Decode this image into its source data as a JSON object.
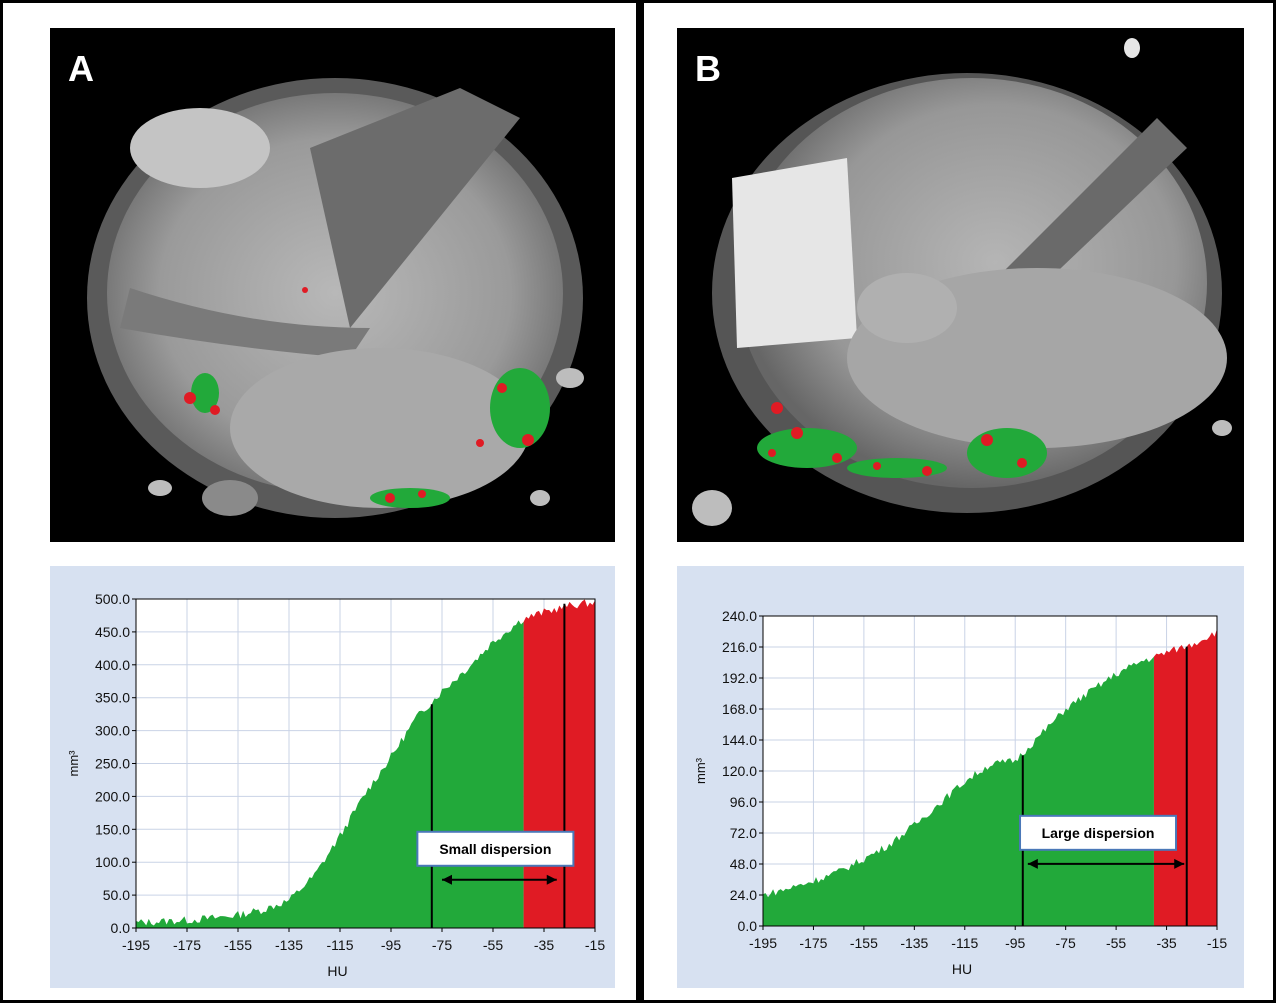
{
  "panels": [
    {
      "label": "A"
    },
    {
      "label": "B"
    }
  ],
  "colors": {
    "green": "#22a93a",
    "red": "#e01b24",
    "chart_bg": "#d7e1f1",
    "plot_bg": "#ffffff"
  },
  "chart_data": [
    {
      "type": "area",
      "panel": "A",
      "xlabel": "HU",
      "ylabel": "mm³",
      "xlim": [
        -195,
        -15
      ],
      "ylim": [
        0,
        500
      ],
      "xticks": [
        "-195",
        "-175",
        "-155",
        "-135",
        "-115",
        "-95",
        "-75",
        "-55",
        "-35",
        "-15"
      ],
      "yticks": [
        "0.0",
        "50.0",
        "100.0",
        "150.0",
        "200.0",
        "250.0",
        "300.0",
        "350.0",
        "400.0",
        "450.0",
        "500.0"
      ],
      "x": [
        -195,
        -185,
        -175,
        -165,
        -155,
        -145,
        -135,
        -125,
        -115,
        -105,
        -95,
        -85,
        -75,
        -65,
        -55,
        -45,
        -43,
        -35,
        -25,
        -15
      ],
      "y": [
        8,
        10,
        12,
        15,
        20,
        28,
        42,
        80,
        140,
        205,
        260,
        320,
        360,
        395,
        435,
        465,
        470,
        480,
        490,
        495
      ],
      "green_range": [
        -195,
        -43
      ],
      "red_range": [
        -43,
        -15
      ],
      "markers": [
        -79,
        -27
      ],
      "annotation": {
        "text": "Small dispersion",
        "from": -75,
        "to": -30,
        "y": 128
      }
    },
    {
      "type": "area",
      "panel": "B",
      "xlabel": "HU",
      "ylabel": "mm³",
      "xlim": [
        -195,
        -15
      ],
      "ylim": [
        0,
        240
      ],
      "xticks": [
        "-195",
        "-175",
        "-155",
        "-135",
        "-115",
        "-95",
        "-75",
        "-55",
        "-35",
        "-15"
      ],
      "yticks": [
        "0.0",
        "24.0",
        "48.0",
        "72.0",
        "96.0",
        "120.0",
        "144.0",
        "168.0",
        "192.0",
        "216.0",
        "240.0"
      ],
      "x": [
        -195,
        -185,
        -175,
        -165,
        -155,
        -145,
        -135,
        -125,
        -115,
        -105,
        -95,
        -85,
        -75,
        -65,
        -55,
        -45,
        -40,
        -35,
        -25,
        -15
      ],
      "y": [
        24,
        29,
        35,
        42,
        52,
        63,
        78,
        95,
        112,
        125,
        128,
        148,
        168,
        182,
        195,
        205,
        208,
        212,
        218,
        228
      ],
      "green_range": [
        -195,
        -40
      ],
      "red_range": [
        -40,
        -15
      ],
      "markers": [
        -92,
        -27
      ],
      "annotation": {
        "text": "Large dispersion",
        "from": -90,
        "to": -28,
        "y": 76
      }
    }
  ]
}
